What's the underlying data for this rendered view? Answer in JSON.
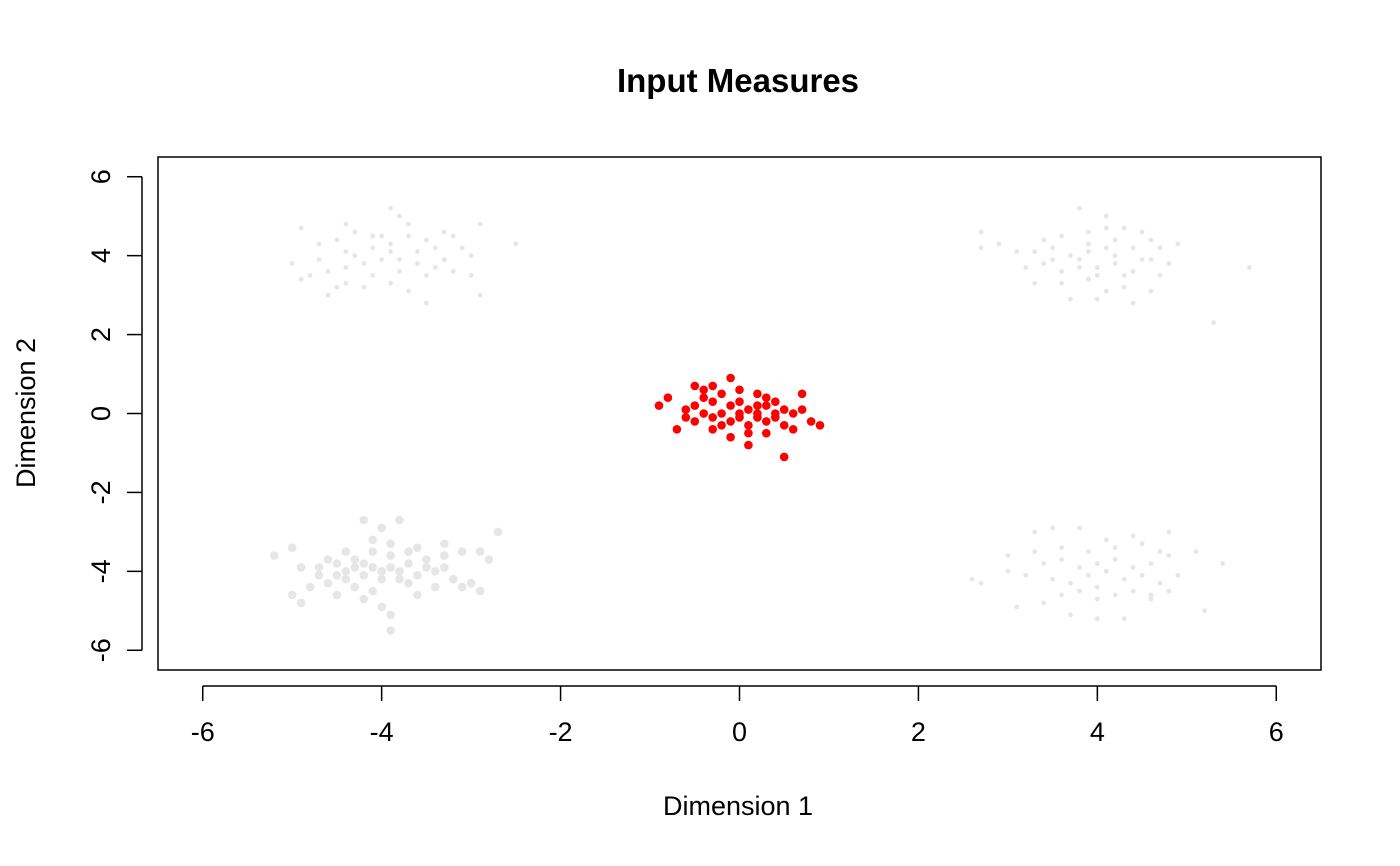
{
  "chart_data": {
    "type": "scatter",
    "title": "Input Measures",
    "xlabel": "Dimension 1",
    "ylabel": "Dimension 2",
    "xlim": [
      -6.5,
      6.5
    ],
    "ylim": [
      -6.5,
      6.5
    ],
    "xticks": [
      -6,
      -4,
      -2,
      0,
      2,
      4,
      6
    ],
    "yticks": [
      -6,
      -4,
      -2,
      0,
      2,
      4,
      6
    ],
    "grid": false,
    "legend": "none",
    "series": [
      {
        "color": "#e6e6e6",
        "marker_size": "small",
        "center": [
          -4,
          4
        ],
        "points": [
          [
            -4.9,
            4.7
          ],
          [
            -4.4,
            4.8
          ],
          [
            -3.9,
            5.2
          ],
          [
            -3.8,
            5.0
          ],
          [
            -4.7,
            4.3
          ],
          [
            -4.5,
            4.4
          ],
          [
            -4.3,
            4.0
          ],
          [
            -4.1,
            4.2
          ],
          [
            -3.9,
            4.3
          ],
          [
            -3.7,
            4.5
          ],
          [
            -3.5,
            4.4
          ],
          [
            -3.3,
            4.6
          ],
          [
            -3.2,
            4.5
          ],
          [
            -2.9,
            4.8
          ],
          [
            -2.5,
            4.3
          ],
          [
            -5.0,
            3.8
          ],
          [
            -4.8,
            3.5
          ],
          [
            -4.6,
            3.6
          ],
          [
            -4.4,
            3.7
          ],
          [
            -4.2,
            3.8
          ],
          [
            -4.0,
            3.9
          ],
          [
            -3.8,
            3.6
          ],
          [
            -3.6,
            3.8
          ],
          [
            -3.4,
            3.7
          ],
          [
            -3.2,
            3.6
          ],
          [
            -3.0,
            3.5
          ],
          [
            -4.5,
            3.2
          ],
          [
            -4.2,
            3.2
          ],
          [
            -3.9,
            3.3
          ],
          [
            -3.7,
            3.1
          ],
          [
            -3.5,
            2.8
          ],
          [
            -2.9,
            3.0
          ],
          [
            -4.6,
            3.0
          ],
          [
            -4.9,
            3.4
          ],
          [
            -4.1,
            4.5
          ],
          [
            -3.9,
            4.1
          ],
          [
            -3.6,
            4.1
          ],
          [
            -3.4,
            4.2
          ],
          [
            -3.1,
            4.2
          ],
          [
            -3.3,
            3.9
          ],
          [
            -4.3,
            4.6
          ],
          [
            -4.0,
            4.5
          ],
          [
            -4.7,
            3.9
          ],
          [
            -4.4,
            4.1
          ],
          [
            -3.8,
            3.9
          ],
          [
            -3.5,
            3.5
          ],
          [
            -4.1,
            3.5
          ],
          [
            -4.4,
            3.3
          ],
          [
            -3.7,
            4.8
          ],
          [
            -3.0,
            4.0
          ]
        ]
      },
      {
        "color": "#e6e6e6",
        "marker_size": "small",
        "center": [
          4,
          4
        ],
        "points": [
          [
            3.8,
            5.2
          ],
          [
            4.1,
            5.0
          ],
          [
            4.3,
            4.7
          ],
          [
            4.5,
            4.6
          ],
          [
            3.6,
            4.5
          ],
          [
            3.9,
            4.6
          ],
          [
            4.2,
            4.4
          ],
          [
            4.6,
            4.4
          ],
          [
            2.7,
            4.6
          ],
          [
            2.7,
            4.2
          ],
          [
            2.9,
            4.3
          ],
          [
            3.1,
            4.1
          ],
          [
            3.3,
            4.1
          ],
          [
            3.5,
            4.2
          ],
          [
            3.7,
            4.0
          ],
          [
            3.9,
            4.1
          ],
          [
            4.1,
            4.2
          ],
          [
            4.4,
            4.2
          ],
          [
            4.7,
            4.2
          ],
          [
            4.9,
            4.3
          ],
          [
            3.2,
            3.7
          ],
          [
            3.4,
            3.8
          ],
          [
            3.6,
            3.6
          ],
          [
            3.8,
            3.9
          ],
          [
            4.0,
            3.7
          ],
          [
            4.2,
            3.8
          ],
          [
            4.5,
            3.9
          ],
          [
            4.8,
            3.8
          ],
          [
            3.3,
            3.3
          ],
          [
            3.6,
            3.3
          ],
          [
            3.9,
            3.4
          ],
          [
            4.1,
            3.1
          ],
          [
            4.3,
            3.2
          ],
          [
            4.6,
            3.1
          ],
          [
            4.0,
            2.9
          ],
          [
            4.4,
            2.8
          ],
          [
            5.7,
            3.7
          ],
          [
            5.3,
            2.3
          ],
          [
            3.7,
            2.9
          ],
          [
            3.5,
            3.9
          ],
          [
            3.9,
            4.3
          ],
          [
            4.1,
            4.7
          ],
          [
            4.3,
            3.5
          ],
          [
            4.7,
            3.5
          ],
          [
            3.4,
            4.4
          ],
          [
            4.0,
            3.5
          ],
          [
            4.6,
            3.9
          ],
          [
            3.8,
            3.7
          ],
          [
            4.2,
            4.0
          ],
          [
            4.4,
            3.6
          ]
        ]
      },
      {
        "color": "#e6e6e6",
        "marker_size": "large",
        "center": [
          -4,
          -4
        ],
        "points": [
          [
            -5.0,
            -3.4
          ],
          [
            -5.2,
            -3.6
          ],
          [
            -4.9,
            -3.9
          ],
          [
            -4.7,
            -4.1
          ],
          [
            -4.5,
            -3.8
          ],
          [
            -4.3,
            -3.7
          ],
          [
            -4.1,
            -3.9
          ],
          [
            -3.9,
            -3.6
          ],
          [
            -3.7,
            -3.5
          ],
          [
            -3.5,
            -3.7
          ],
          [
            -3.3,
            -3.6
          ],
          [
            -3.1,
            -3.5
          ],
          [
            -2.9,
            -3.5
          ],
          [
            -2.8,
            -3.7
          ],
          [
            -2.7,
            -3.0
          ],
          [
            -4.2,
            -2.7
          ],
          [
            -4.0,
            -2.9
          ],
          [
            -3.8,
            -2.7
          ],
          [
            -4.6,
            -4.3
          ],
          [
            -4.4,
            -4.2
          ],
          [
            -4.2,
            -4.1
          ],
          [
            -4.0,
            -4.2
          ],
          [
            -3.8,
            -4.0
          ],
          [
            -3.6,
            -4.1
          ],
          [
            -3.4,
            -4.0
          ],
          [
            -3.2,
            -4.2
          ],
          [
            -3.0,
            -4.3
          ],
          [
            -4.8,
            -4.4
          ],
          [
            -4.5,
            -4.6
          ],
          [
            -4.2,
            -4.7
          ],
          [
            -4.0,
            -4.9
          ],
          [
            -3.9,
            -5.1
          ],
          [
            -3.9,
            -5.5
          ],
          [
            -3.6,
            -4.6
          ],
          [
            -3.4,
            -4.4
          ],
          [
            -3.1,
            -4.4
          ],
          [
            -2.9,
            -4.5
          ],
          [
            -5.0,
            -4.6
          ],
          [
            -4.9,
            -4.8
          ],
          [
            -4.3,
            -4.4
          ],
          [
            -4.1,
            -4.5
          ],
          [
            -3.7,
            -4.3
          ],
          [
            -4.4,
            -3.5
          ],
          [
            -4.1,
            -3.5
          ],
          [
            -3.9,
            -3.3
          ],
          [
            -3.6,
            -3.4
          ],
          [
            -4.6,
            -3.7
          ],
          [
            -4.3,
            -3.9
          ],
          [
            -3.9,
            -3.9
          ],
          [
            -3.7,
            -3.8
          ],
          [
            -3.5,
            -3.9
          ],
          [
            -3.3,
            -3.9
          ],
          [
            -4.7,
            -3.9
          ],
          [
            -4.5,
            -4.1
          ],
          [
            -4.0,
            -4.0
          ],
          [
            -4.2,
            -3.8
          ],
          [
            -3.8,
            -4.2
          ],
          [
            -4.1,
            -3.2
          ],
          [
            -3.3,
            -3.3
          ],
          [
            -4.4,
            -4.0
          ]
        ]
      },
      {
        "color": "#e6e6e6",
        "marker_size": "small",
        "center": [
          4,
          -4
        ],
        "points": [
          [
            3.3,
            -3.0
          ],
          [
            3.5,
            -2.9
          ],
          [
            3.8,
            -2.9
          ],
          [
            4.1,
            -3.2
          ],
          [
            4.4,
            -3.1
          ],
          [
            4.8,
            -3.0
          ],
          [
            2.6,
            -4.2
          ],
          [
            2.7,
            -4.3
          ],
          [
            3.0,
            -4.0
          ],
          [
            3.2,
            -4.1
          ],
          [
            3.4,
            -3.8
          ],
          [
            3.6,
            -3.7
          ],
          [
            3.8,
            -3.9
          ],
          [
            4.0,
            -3.8
          ],
          [
            4.2,
            -3.7
          ],
          [
            4.4,
            -3.9
          ],
          [
            4.6,
            -3.8
          ],
          [
            4.8,
            -3.6
          ],
          [
            5.1,
            -3.5
          ],
          [
            5.4,
            -3.8
          ],
          [
            3.1,
            -4.9
          ],
          [
            3.4,
            -4.8
          ],
          [
            3.6,
            -4.6
          ],
          [
            3.8,
            -4.5
          ],
          [
            4.0,
            -4.4
          ],
          [
            4.2,
            -4.6
          ],
          [
            4.4,
            -4.5
          ],
          [
            4.6,
            -4.7
          ],
          [
            4.8,
            -4.5
          ],
          [
            5.2,
            -5.0
          ],
          [
            3.7,
            -5.1
          ],
          [
            4.0,
            -5.2
          ],
          [
            4.3,
            -5.2
          ],
          [
            3.5,
            -4.2
          ],
          [
            3.7,
            -4.3
          ],
          [
            3.9,
            -4.1
          ],
          [
            4.1,
            -4.0
          ],
          [
            4.3,
            -4.2
          ],
          [
            4.5,
            -4.1
          ],
          [
            4.7,
            -4.3
          ],
          [
            4.9,
            -4.1
          ],
          [
            3.6,
            -3.4
          ],
          [
            3.9,
            -3.5
          ],
          [
            4.2,
            -3.4
          ],
          [
            4.5,
            -3.3
          ],
          [
            4.7,
            -3.5
          ],
          [
            3.3,
            -3.5
          ],
          [
            3.0,
            -3.6
          ],
          [
            4.0,
            -4.7
          ],
          [
            4.6,
            -4.6
          ]
        ]
      },
      {
        "color": "#ff0000",
        "marker_size": "large",
        "center": [
          0,
          0
        ],
        "points": [
          [
            -0.1,
            0.9
          ],
          [
            -0.5,
            0.7
          ],
          [
            -0.4,
            0.6
          ],
          [
            -0.3,
            0.7
          ],
          [
            -0.2,
            0.5
          ],
          [
            0.0,
            0.6
          ],
          [
            0.2,
            0.5
          ],
          [
            0.4,
            0.3
          ],
          [
            0.7,
            0.5
          ],
          [
            -0.8,
            0.4
          ],
          [
            -0.9,
            0.2
          ],
          [
            -0.6,
            0.1
          ],
          [
            -0.5,
            0.2
          ],
          [
            -0.3,
            0.3
          ],
          [
            -0.1,
            0.2
          ],
          [
            0.1,
            0.1
          ],
          [
            0.3,
            0.2
          ],
          [
            0.5,
            0.1
          ],
          [
            0.7,
            0.1
          ],
          [
            -0.7,
            -0.4
          ],
          [
            -0.5,
            -0.2
          ],
          [
            -0.3,
            -0.1
          ],
          [
            -0.1,
            -0.2
          ],
          [
            0.1,
            -0.3
          ],
          [
            0.3,
            -0.2
          ],
          [
            0.5,
            -0.3
          ],
          [
            0.6,
            -0.4
          ],
          [
            0.8,
            -0.2
          ],
          [
            0.9,
            -0.3
          ],
          [
            -0.3,
            -0.4
          ],
          [
            -0.1,
            -0.6
          ],
          [
            0.1,
            -0.5
          ],
          [
            0.1,
            -0.8
          ],
          [
            0.3,
            -0.5
          ],
          [
            0.5,
            -1.1
          ],
          [
            -0.4,
            0.0
          ],
          [
            -0.2,
            0.0
          ],
          [
            0.0,
            0.0
          ],
          [
            0.2,
            0.0
          ],
          [
            0.4,
            0.0
          ],
          [
            -0.6,
            -0.1
          ],
          [
            0.0,
            -0.1
          ],
          [
            0.2,
            -0.1
          ],
          [
            0.4,
            -0.1
          ],
          [
            -0.4,
            0.4
          ],
          [
            0.0,
            0.3
          ],
          [
            0.3,
            0.4
          ],
          [
            -0.2,
            -0.3
          ],
          [
            0.2,
            0.2
          ],
          [
            0.6,
            0.0
          ]
        ]
      }
    ]
  }
}
